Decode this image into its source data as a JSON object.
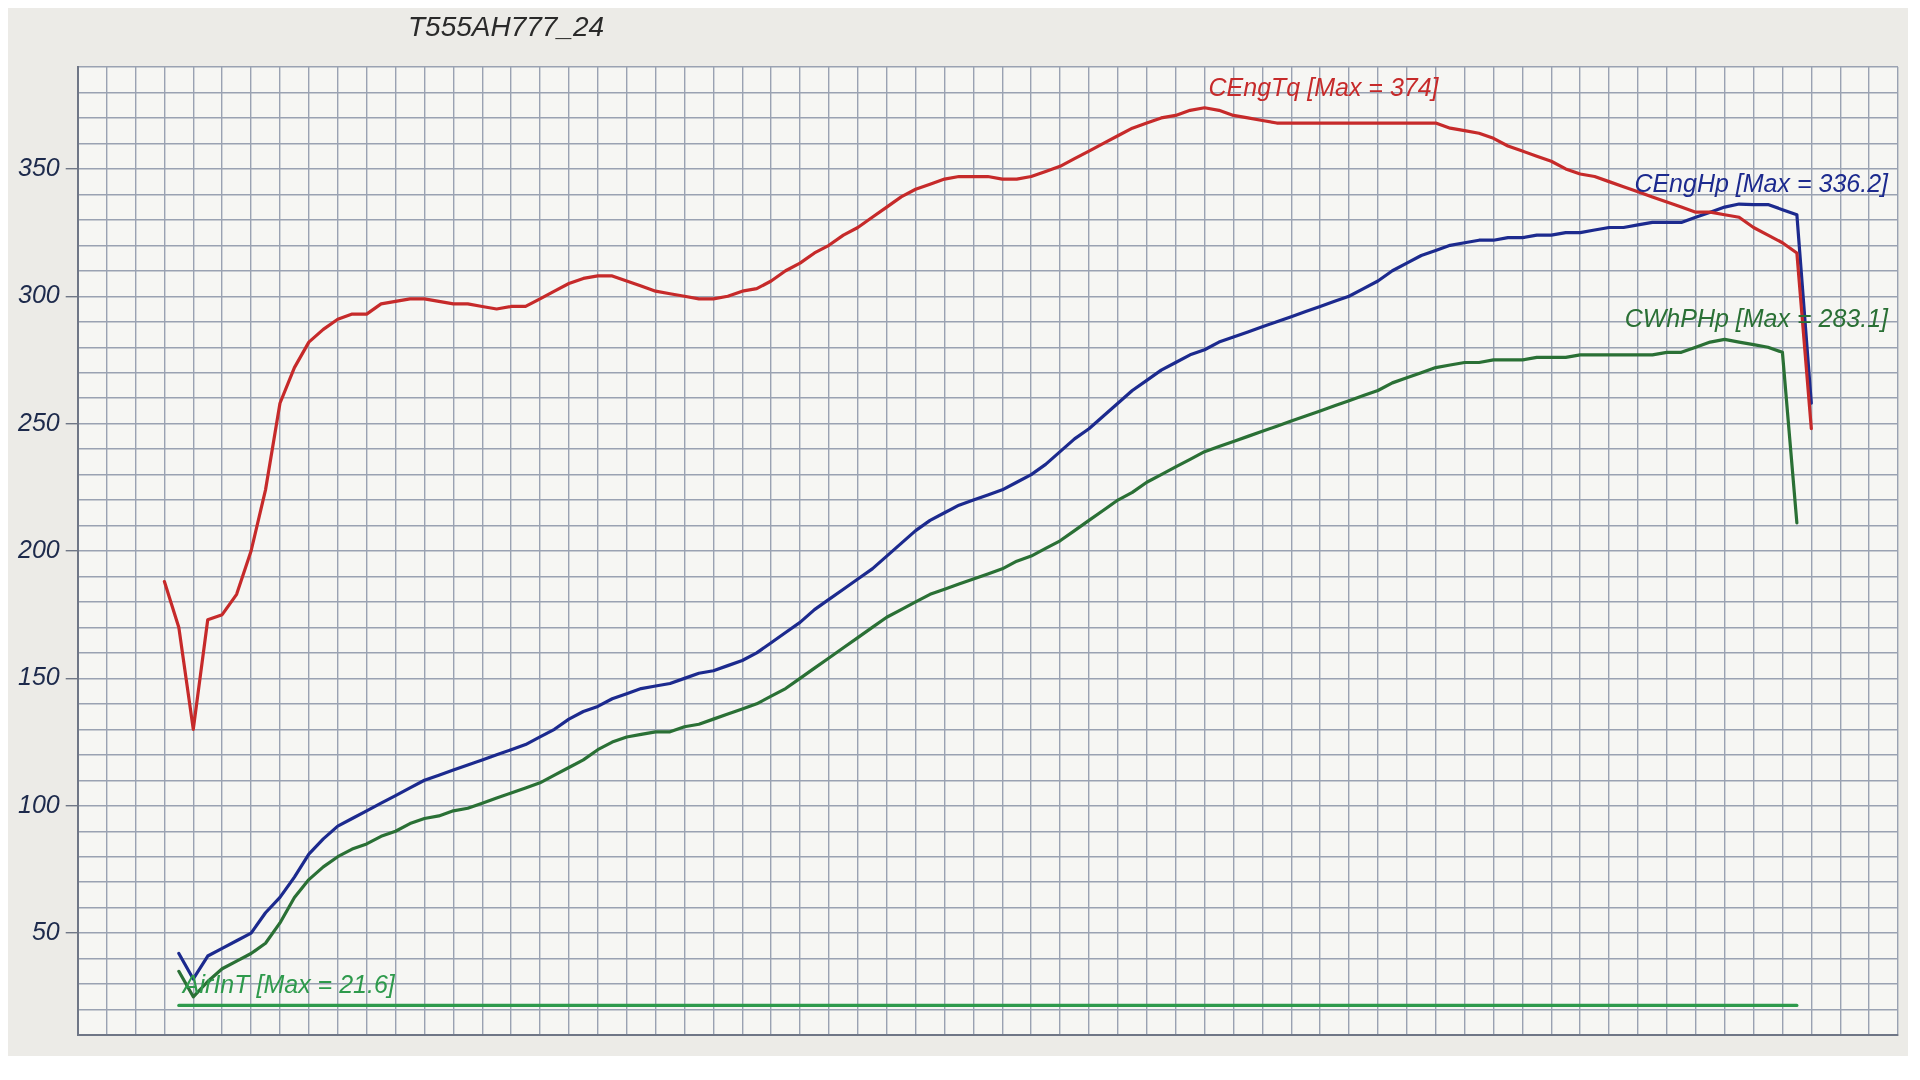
{
  "chart_data": {
    "type": "line",
    "title": "T555AH777_24",
    "categories": [
      null,
      null,
      null,
      null,
      null,
      null,
      null,
      null,
      null,
      null,
      null,
      null,
      null,
      null,
      null,
      null,
      null,
      null,
      null,
      null,
      null,
      null,
      null,
      null,
      null,
      null,
      null,
      null,
      null,
      null,
      null,
      null,
      null,
      null,
      null,
      null,
      null,
      null,
      null,
      null,
      null,
      null,
      null,
      null,
      null,
      null,
      null,
      null,
      null,
      null,
      null,
      null,
      null,
      null,
      null,
      null,
      null,
      null,
      null,
      null,
      null,
      null,
      null,
      null,
      null,
      null,
      null,
      null,
      null,
      null,
      null,
      null,
      null,
      null,
      null,
      null,
      null,
      null,
      null,
      null,
      null,
      null,
      null,
      null,
      null,
      null,
      null,
      null,
      null,
      null,
      null,
      null,
      null,
      null,
      null,
      null,
      null,
      null,
      null,
      null,
      null,
      null,
      null,
      null,
      null,
      null,
      null,
      null,
      null,
      null,
      null,
      null,
      null,
      null,
      null,
      null,
      null,
      null,
      null,
      null,
      null,
      null,
      null,
      null,
      null,
      null,
      null
    ],
    "series": [
      {
        "name": "CEngTq [Max = 374]",
        "color": "#c62a2a",
        "values": [
          null,
          null,
          null,
          null,
          null,
          null,
          188,
          170,
          130,
          173,
          175,
          183,
          200,
          224,
          258,
          272,
          282,
          287,
          291,
          293,
          293,
          297,
          298,
          299,
          299,
          298,
          297,
          297,
          296,
          295,
          296,
          296,
          299,
          302,
          305,
          307,
          308,
          308,
          306,
          304,
          302,
          301,
          300,
          299,
          299,
          300,
          302,
          303,
          306,
          310,
          313,
          317,
          320,
          324,
          327,
          331,
          335,
          339,
          342,
          344,
          346,
          347,
          347,
          347,
          346,
          346,
          347,
          349,
          351,
          354,
          357,
          360,
          363,
          366,
          368,
          370,
          371,
          373,
          374,
          373,
          371,
          370,
          369,
          368,
          368,
          368,
          368,
          368,
          368,
          368,
          368,
          368,
          368,
          368,
          368,
          366,
          365,
          364,
          362,
          359,
          357,
          355,
          353,
          350,
          348,
          347,
          345,
          343,
          341,
          339,
          337,
          335,
          333,
          333,
          332,
          331,
          327,
          324,
          321,
          317,
          248,
          null,
          null,
          null,
          null,
          null,
          null
        ]
      },
      {
        "name": "CEngHp [Max = 336.2]",
        "color": "#1c2a8e",
        "values": [
          null,
          null,
          null,
          null,
          null,
          null,
          null,
          42,
          32,
          41,
          44,
          47,
          50,
          58,
          64,
          72,
          81,
          87,
          92,
          95,
          98,
          101,
          104,
          107,
          110,
          112,
          114,
          116,
          118,
          120,
          122,
          124,
          127,
          130,
          134,
          137,
          139,
          142,
          144,
          146,
          147,
          148,
          150,
          152,
          153,
          155,
          157,
          160,
          164,
          168,
          172,
          177,
          181,
          185,
          189,
          193,
          198,
          203,
          208,
          212,
          215,
          218,
          220,
          222,
          224,
          227,
          230,
          234,
          239,
          244,
          248,
          253,
          258,
          263,
          267,
          271,
          274,
          277,
          279,
          282,
          284,
          286,
          288,
          290,
          292,
          294,
          296,
          298,
          300,
          303,
          306,
          310,
          313,
          316,
          318,
          320,
          321,
          322,
          322,
          323,
          323,
          324,
          324,
          325,
          325,
          326,
          327,
          327,
          328,
          329,
          329,
          329,
          331,
          333,
          335,
          336.2,
          336,
          336,
          334,
          332,
          258,
          null,
          null,
          null,
          null,
          null,
          null
        ]
      },
      {
        "name": "CWhPHp [Max = 283.1]",
        "color": "#2a7035",
        "values": [
          null,
          null,
          null,
          null,
          null,
          null,
          null,
          35,
          25,
          31,
          36,
          39,
          42,
          46,
          54,
          64,
          71,
          76,
          80,
          83,
          85,
          88,
          90,
          93,
          95,
          96,
          98,
          99,
          101,
          103,
          105,
          107,
          109,
          112,
          115,
          118,
          122,
          125,
          127,
          128,
          129,
          129,
          131,
          132,
          134,
          136,
          138,
          140,
          143,
          146,
          150,
          154,
          158,
          162,
          166,
          170,
          174,
          177,
          180,
          183,
          185,
          187,
          189,
          191,
          193,
          196,
          198,
          201,
          204,
          208,
          212,
          216,
          220,
          223,
          227,
          230,
          233,
          236,
          239,
          241,
          243,
          245,
          247,
          249,
          251,
          253,
          255,
          257,
          259,
          261,
          263,
          266,
          268,
          270,
          272,
          273,
          274,
          274,
          275,
          275,
          275,
          276,
          276,
          276,
          277,
          277,
          277,
          277,
          277,
          277,
          278,
          278,
          280,
          282,
          283.1,
          282,
          281,
          280,
          278,
          211,
          null,
          null,
          null,
          null,
          null,
          null,
          null
        ]
      },
      {
        "name": "AirInT [Max = 21.6]",
        "color": "#2e9a4c",
        "values": [
          null,
          null,
          null,
          null,
          null,
          null,
          null,
          21.6,
          21.6,
          21.6,
          21.6,
          21.6,
          21.6,
          21.6,
          21.6,
          21.6,
          21.6,
          21.6,
          21.6,
          21.6,
          21.6,
          21.6,
          21.6,
          21.6,
          21.6,
          21.6,
          21.6,
          21.6,
          21.6,
          21.6,
          21.6,
          21.6,
          21.6,
          21.6,
          21.6,
          21.6,
          21.6,
          21.6,
          21.6,
          21.6,
          21.6,
          21.6,
          21.6,
          21.6,
          21.6,
          21.6,
          21.6,
          21.6,
          21.6,
          21.6,
          21.6,
          21.6,
          21.6,
          21.6,
          21.6,
          21.6,
          21.6,
          21.6,
          21.6,
          21.6,
          21.6,
          21.6,
          21.6,
          21.6,
          21.6,
          21.6,
          21.6,
          21.6,
          21.6,
          21.6,
          21.6,
          21.6,
          21.6,
          21.6,
          21.6,
          21.6,
          21.6,
          21.6,
          21.6,
          21.6,
          21.6,
          21.6,
          21.6,
          21.6,
          21.6,
          21.6,
          21.6,
          21.6,
          21.6,
          21.6,
          21.6,
          21.6,
          21.6,
          21.6,
          21.6,
          21.6,
          21.6,
          21.6,
          21.6,
          21.6,
          21.6,
          21.6,
          21.6,
          21.6,
          21.6,
          21.6,
          21.6,
          21.6,
          21.6,
          21.6,
          21.6,
          21.6,
          21.6,
          21.6,
          21.6,
          21.6,
          21.6,
          21.6,
          21.6,
          21.6,
          null,
          null,
          null,
          null,
          null,
          null,
          null
        ]
      }
    ],
    "ylim": [
      10,
      390
    ],
    "yticks": [
      {
        "value": 10,
        "label": null
      },
      {
        "value": 20,
        "label": null
      },
      {
        "value": 30,
        "label": null
      },
      {
        "value": 40,
        "label": null
      },
      50,
      {
        "value": 60,
        "label": null
      },
      {
        "value": 70,
        "label": null
      },
      {
        "value": 80,
        "label": null
      },
      {
        "value": 90,
        "label": null
      },
      100,
      {
        "value": 110,
        "label": null
      },
      {
        "value": 120,
        "label": null
      },
      {
        "value": 130,
        "label": null
      },
      {
        "value": 140,
        "label": null
      },
      150,
      {
        "value": 160,
        "label": null
      },
      {
        "value": 170,
        "label": null
      },
      {
        "value": 180,
        "label": null
      },
      {
        "value": 190,
        "label": null
      },
      200,
      {
        "value": 210,
        "label": null
      },
      {
        "value": 220,
        "label": null
      },
      {
        "value": 230,
        "label": null
      },
      {
        "value": 240,
        "label": null
      },
      250,
      {
        "value": 260,
        "label": null
      },
      {
        "value": 270,
        "label": null
      },
      {
        "value": 280,
        "label": null
      },
      {
        "value": 290,
        "label": null
      },
      300,
      {
        "value": 310,
        "label": null
      },
      {
        "value": 320,
        "label": null
      },
      {
        "value": 330,
        "label": null
      },
      {
        "value": 340,
        "label": null
      },
      350,
      {
        "value": 360,
        "label": null
      },
      {
        "value": 370,
        "label": null
      },
      {
        "value": 380,
        "label": null
      },
      {
        "value": 390,
        "label": null
      }
    ],
    "grid": true,
    "legend": false,
    "tick_labels": "y"
  }
}
